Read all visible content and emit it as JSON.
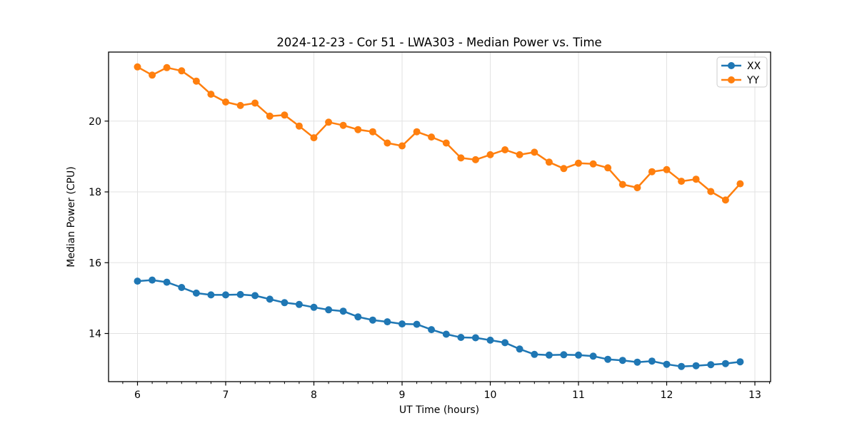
{
  "chart_data": {
    "type": "line",
    "title": "2024-12-23 - Cor 51 - LWA303 - Median Power vs. Time",
    "xlabel": "UT Time (hours)",
    "ylabel": "Median Power (CPU)",
    "x": [
      6.0,
      6.167,
      6.333,
      6.5,
      6.667,
      6.833,
      7.0,
      7.167,
      7.333,
      7.5,
      7.667,
      7.833,
      8.0,
      8.167,
      8.333,
      8.5,
      8.667,
      8.833,
      9.0,
      9.167,
      9.333,
      9.5,
      9.667,
      9.833,
      10.0,
      10.167,
      10.333,
      10.5,
      10.667,
      10.833,
      11.0,
      11.167,
      11.333,
      11.5,
      11.667,
      11.833,
      12.0,
      12.167,
      12.333,
      12.5,
      12.667,
      12.833
    ],
    "series": [
      {
        "name": "XX",
        "color": "#1f77b4",
        "values": [
          15.48,
          15.51,
          15.45,
          15.3,
          15.14,
          15.09,
          15.09,
          15.1,
          15.07,
          14.97,
          14.87,
          14.82,
          14.74,
          14.67,
          14.63,
          14.47,
          14.38,
          14.33,
          14.27,
          14.26,
          14.11,
          13.98,
          13.89,
          13.88,
          13.81,
          13.74,
          13.56,
          13.41,
          13.39,
          13.4,
          13.39,
          13.36,
          13.27,
          13.24,
          13.19,
          13.22,
          13.13,
          13.07,
          13.09,
          13.12,
          13.15,
          13.2
        ]
      },
      {
        "name": "YY",
        "color": "#ff7f0e",
        "values": [
          21.53,
          21.3,
          21.51,
          21.42,
          21.13,
          20.76,
          20.54,
          20.44,
          20.51,
          20.14,
          20.17,
          19.86,
          19.53,
          19.97,
          19.88,
          19.76,
          19.7,
          19.38,
          19.3,
          19.7,
          19.55,
          19.38,
          18.96,
          18.91,
          19.05,
          19.19,
          19.05,
          19.12,
          18.84,
          18.66,
          18.81,
          18.79,
          18.68,
          18.21,
          18.12,
          18.57,
          18.63,
          18.3,
          18.36,
          18.01,
          17.77,
          18.23
        ]
      }
    ],
    "xlim": [
      5.672,
      13.178
    ],
    "ylim": [
      12.64,
      21.95
    ],
    "xticks": [
      6,
      7,
      8,
      9,
      10,
      11,
      12,
      13
    ],
    "yticks": [
      14,
      16,
      18,
      20
    ],
    "x_minor_step": 0.16667,
    "grid": true,
    "grid_color": "#e2e2e2",
    "spine_color": "#000000",
    "legend": {
      "position": "upper right",
      "entries": [
        "XX",
        "YY"
      ]
    },
    "marker": "circle",
    "line_width": 2.5,
    "marker_radius": 5
  }
}
